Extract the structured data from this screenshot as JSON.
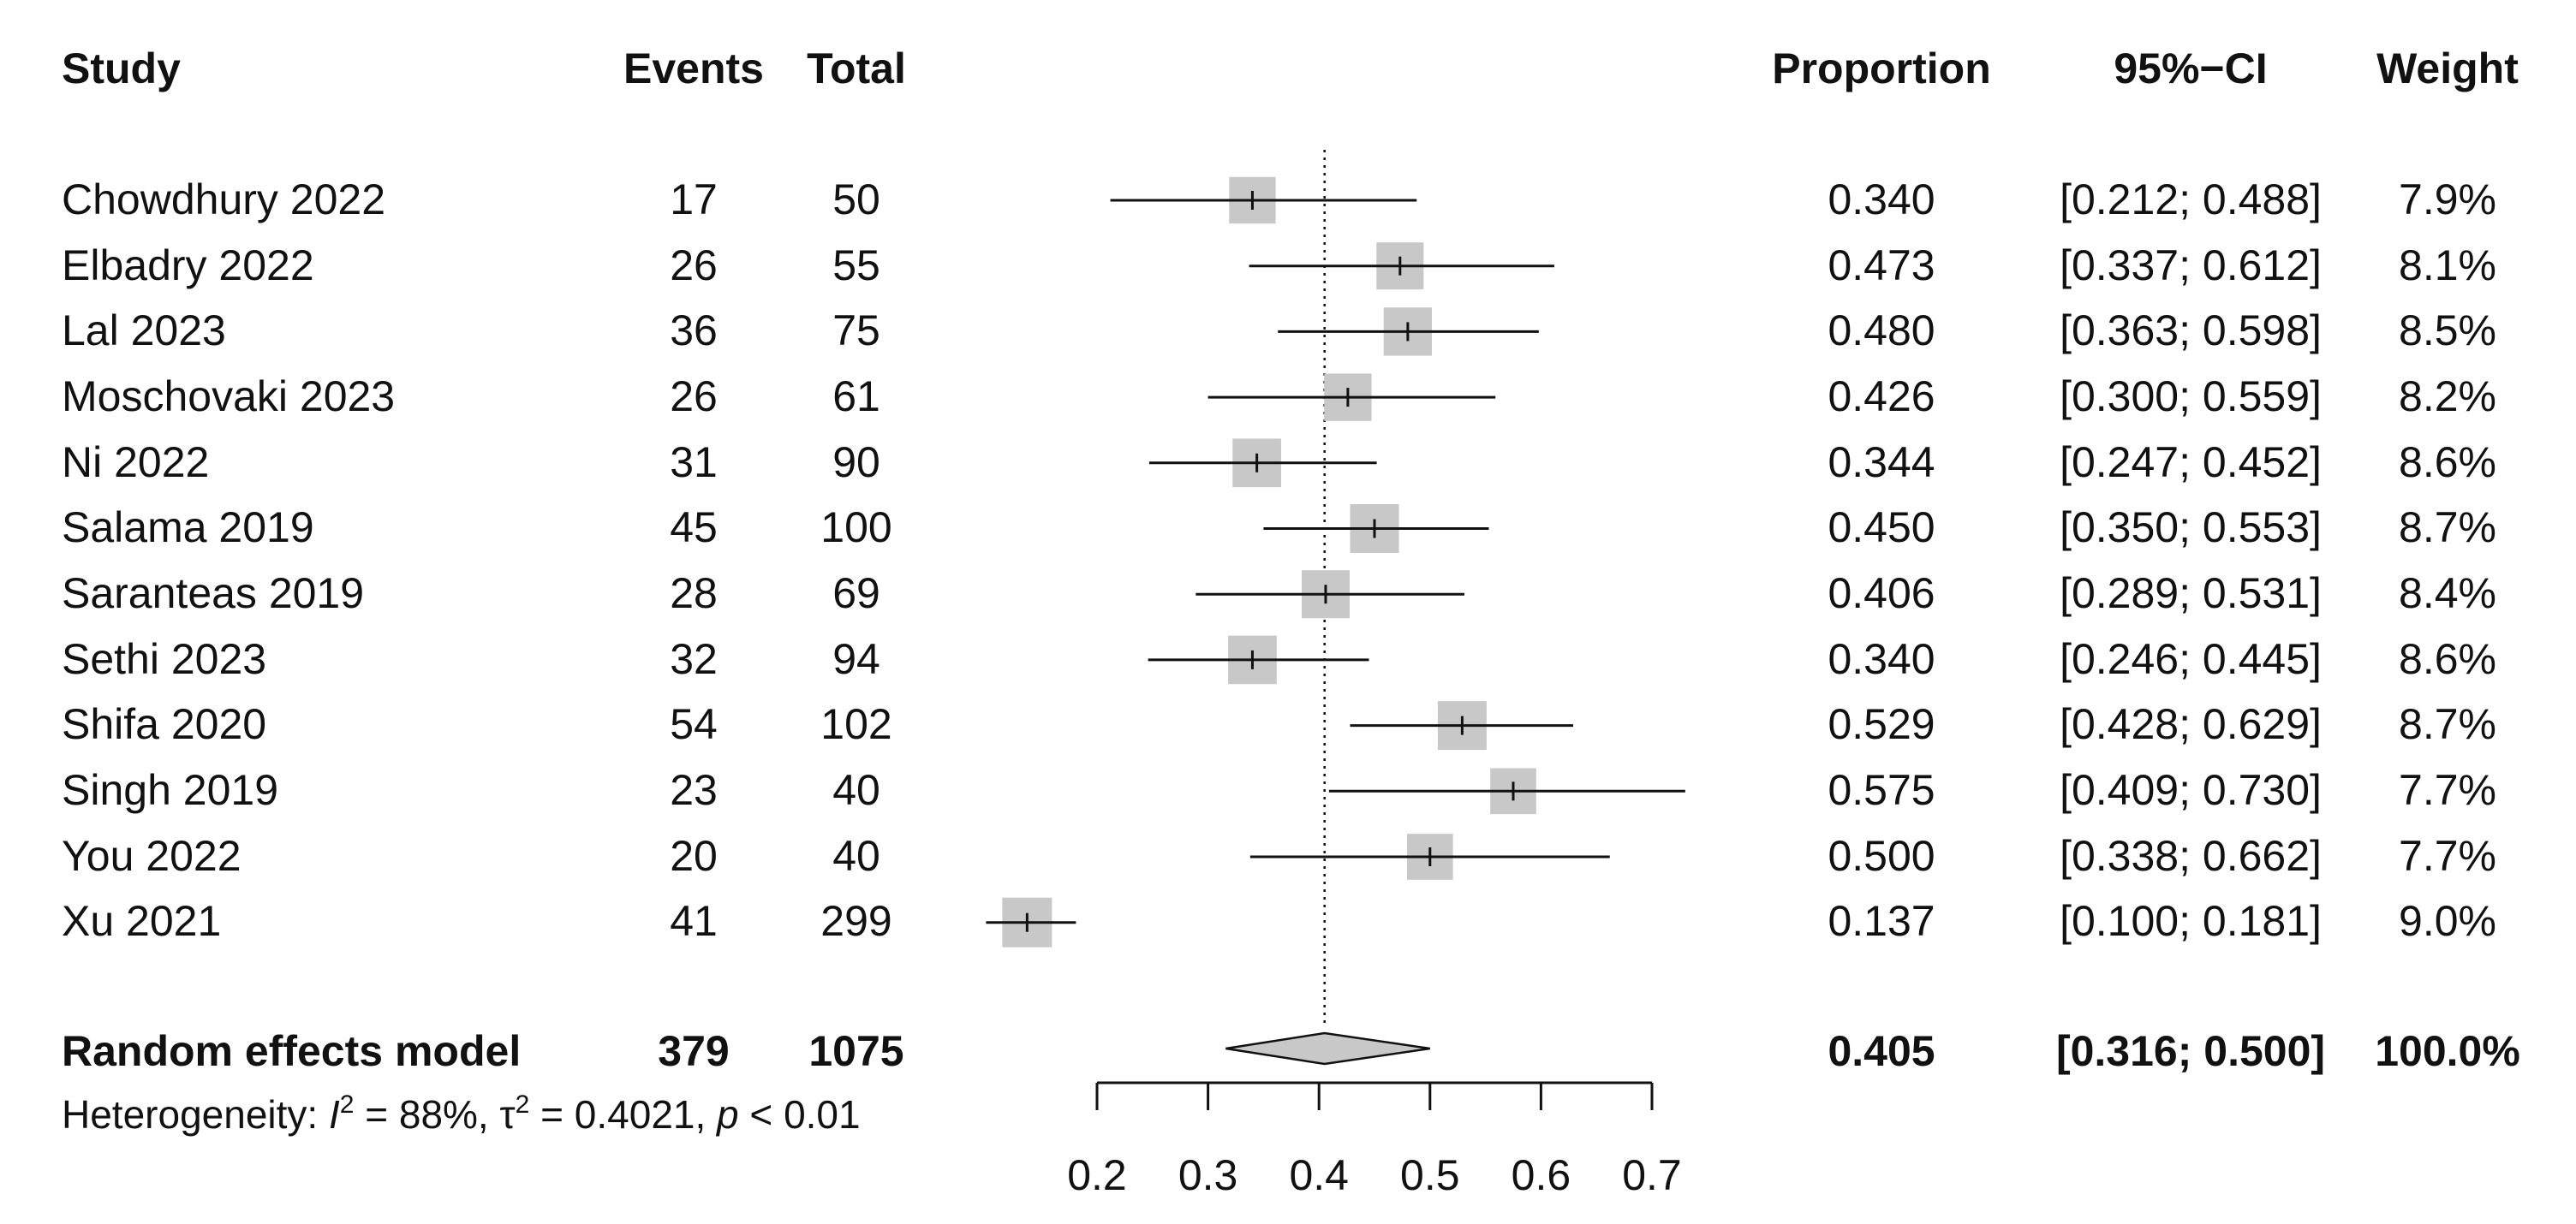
{
  "chart_data": {
    "type": "forest",
    "headers": {
      "study": "Study",
      "events": "Events",
      "total": "Total",
      "proportion": "Proportion",
      "ci": "95%−CI",
      "weight": "Weight"
    },
    "studies": [
      {
        "study": "Chowdhury 2022",
        "events": "17",
        "total": "50",
        "proportion": 0.34,
        "lower": 0.212,
        "upper": 0.488,
        "prop_text": "0.340",
        "ci_text": "[0.212; 0.488]",
        "weight": 7.9,
        "weight_text": "7.9%"
      },
      {
        "study": "Elbadry 2022",
        "events": "26",
        "total": "55",
        "proportion": 0.473,
        "lower": 0.337,
        "upper": 0.612,
        "prop_text": "0.473",
        "ci_text": "[0.337; 0.612]",
        "weight": 8.1,
        "weight_text": "8.1%"
      },
      {
        "study": "Lal 2023",
        "events": "36",
        "total": "75",
        "proportion": 0.48,
        "lower": 0.363,
        "upper": 0.598,
        "prop_text": "0.480",
        "ci_text": "[0.363; 0.598]",
        "weight": 8.5,
        "weight_text": "8.5%"
      },
      {
        "study": "Moschovaki 2023",
        "events": "26",
        "total": "61",
        "proportion": 0.426,
        "lower": 0.3,
        "upper": 0.559,
        "prop_text": "0.426",
        "ci_text": "[0.300; 0.559]",
        "weight": 8.2,
        "weight_text": "8.2%"
      },
      {
        "study": "Ni 2022",
        "events": "31",
        "total": "90",
        "proportion": 0.344,
        "lower": 0.247,
        "upper": 0.452,
        "prop_text": "0.344",
        "ci_text": "[0.247; 0.452]",
        "weight": 8.6,
        "weight_text": "8.6%"
      },
      {
        "study": "Salama 2019",
        "events": "45",
        "total": "100",
        "proportion": 0.45,
        "lower": 0.35,
        "upper": 0.553,
        "prop_text": "0.450",
        "ci_text": "[0.350; 0.553]",
        "weight": 8.7,
        "weight_text": "8.7%"
      },
      {
        "study": "Saranteas 2019",
        "events": "28",
        "total": "69",
        "proportion": 0.406,
        "lower": 0.289,
        "upper": 0.531,
        "prop_text": "0.406",
        "ci_text": "[0.289; 0.531]",
        "weight": 8.4,
        "weight_text": "8.4%"
      },
      {
        "study": "Sethi 2023",
        "events": "32",
        "total": "94",
        "proportion": 0.34,
        "lower": 0.246,
        "upper": 0.445,
        "prop_text": "0.340",
        "ci_text": "[0.246; 0.445]",
        "weight": 8.6,
        "weight_text": "8.6%"
      },
      {
        "study": "Shifa 2020",
        "events": "54",
        "total": "102",
        "proportion": 0.529,
        "lower": 0.428,
        "upper": 0.629,
        "prop_text": "0.529",
        "ci_text": "[0.428; 0.629]",
        "weight": 8.7,
        "weight_text": "8.7%"
      },
      {
        "study": "Singh 2019",
        "events": "23",
        "total": "40",
        "proportion": 0.575,
        "lower": 0.409,
        "upper": 0.73,
        "prop_text": "0.575",
        "ci_text": "[0.409; 0.730]",
        "weight": 7.7,
        "weight_text": "7.7%"
      },
      {
        "study": "You 2022",
        "events": "20",
        "total": "40",
        "proportion": 0.5,
        "lower": 0.338,
        "upper": 0.662,
        "prop_text": "0.500",
        "ci_text": "[0.338; 0.662]",
        "weight": 7.7,
        "weight_text": "7.7%"
      },
      {
        "study": "Xu 2021",
        "events": "41",
        "total": "299",
        "proportion": 0.137,
        "lower": 0.1,
        "upper": 0.181,
        "prop_text": "0.137",
        "ci_text": "[0.100; 0.181]",
        "weight": 9.0,
        "weight_text": "9.0%"
      }
    ],
    "summary": {
      "label": "Random effects model",
      "events": "379",
      "total": "1075",
      "proportion": 0.405,
      "lower": 0.316,
      "upper": 0.5,
      "prop_text": "0.405",
      "ci_text": "[0.316; 0.500]",
      "weight_text": "100.0%"
    },
    "heterogeneity": {
      "prefix": "Heterogeneity: ",
      "i2_symbol": "I",
      "i2_sup": "2",
      "i2_value": " = 88%, ",
      "tau_symbol": "τ",
      "tau_sup": "2",
      "tau_value": " = 0.4021, ",
      "p_symbol": "p",
      "p_value": " < 0.01"
    },
    "x_axis": {
      "ticks": [
        0.2,
        0.3,
        0.4,
        0.5,
        0.6,
        0.7
      ],
      "tick_labels": [
        "0.2",
        "0.3",
        "0.4",
        "0.5",
        "0.6",
        "0.7"
      ],
      "range": [
        0.2,
        0.7
      ]
    },
    "reference_line": 0.405,
    "colors": {
      "square": "#c8c8c8",
      "diamond": "#c8c8c8",
      "line": "#111111",
      "text": "#111111"
    }
  }
}
